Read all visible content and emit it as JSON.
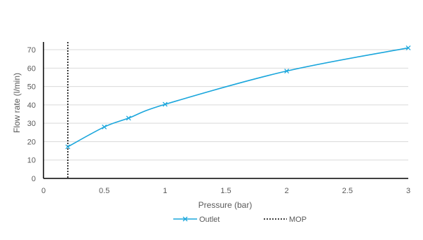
{
  "chart_data": {
    "type": "line",
    "title": "",
    "xlabel": "Pressure (bar)",
    "ylabel": "Flow rate (l/min)",
    "xlim": [
      0,
      3
    ],
    "ylim": [
      0,
      70
    ],
    "x_ticks": [
      0,
      0.5,
      1,
      1.5,
      2,
      2.5,
      3
    ],
    "x_tick_labels": [
      "0",
      "0.5",
      "1",
      "1.5",
      "2",
      "2.5",
      "3"
    ],
    "y_ticks": [
      0,
      10,
      20,
      30,
      40,
      50,
      60,
      70
    ],
    "y_tick_labels": [
      "0",
      "10",
      "20",
      "30",
      "40",
      "50",
      "60",
      "70"
    ],
    "grid": "horizontal",
    "legend_position": "bottom",
    "series": [
      {
        "name": "Outlet",
        "color": "#1aa6dc",
        "marker": "x",
        "smooth": true,
        "x": [
          0.2,
          0.5,
          0.7,
          1,
          2,
          3
        ],
        "y": [
          17.2,
          28,
          32.8,
          40.3,
          58.4,
          71
        ]
      }
    ],
    "reference_lines": [
      {
        "name": "MOP",
        "orientation": "vertical",
        "x": 0.2,
        "style": "dotted",
        "color": "#000000"
      }
    ]
  }
}
